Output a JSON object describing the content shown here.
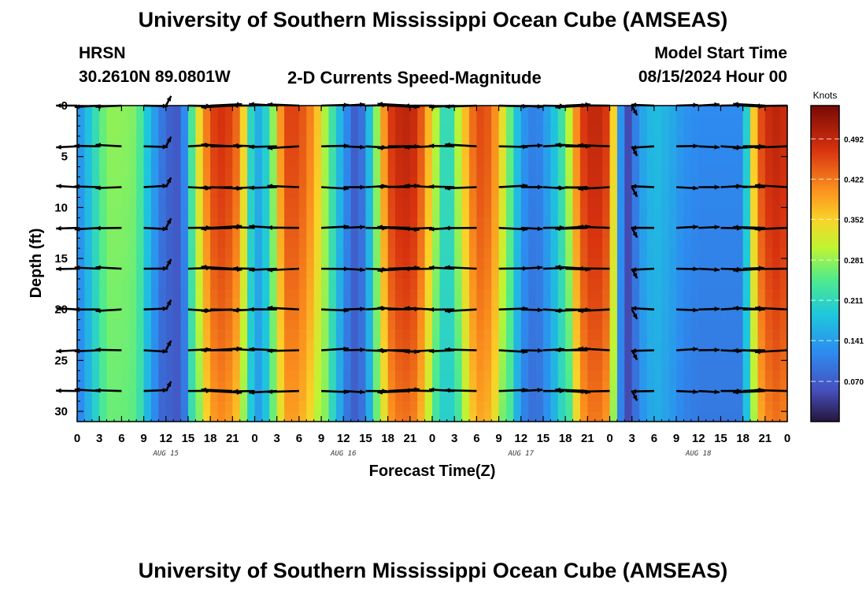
{
  "header": {
    "title": "University of Southern Mississippi Ocean Cube (AMSEAS)",
    "station": "HRSN",
    "location": "30.2610N  89.0801W",
    "subtitle": "2-D Currents Speed-Magnitude",
    "model_start_label": "Model Start Time",
    "model_start_value": "08/15/2024 Hour 00"
  },
  "footer": {
    "title": "University of Southern Mississippi Ocean Cube (AMSEAS)"
  },
  "chart_data": {
    "type": "heatmap",
    "title": "2-D Currents Speed-Magnitude",
    "xlabel": "Forecast Time(Z)",
    "ylabel": "Depth (ft)",
    "x_range_hours": [
      0,
      96
    ],
    "y_range_ft": [
      0,
      31
    ],
    "x_tick_labels": [
      "0",
      "3",
      "6",
      "9",
      "12",
      "15",
      "18",
      "21",
      "0",
      "3",
      "6",
      "9",
      "12",
      "15",
      "18",
      "21",
      "0",
      "3",
      "6",
      "9",
      "12",
      "15",
      "18",
      "21",
      "0",
      "3",
      "6",
      "9",
      "12",
      "15",
      "18",
      "21",
      "0"
    ],
    "y_ticks": [
      0,
      5,
      10,
      15,
      20,
      25,
      30
    ],
    "date_labels": [
      {
        "label": "AUG 15",
        "hour": 12
      },
      {
        "label": "AUG 16",
        "hour": 36
      },
      {
        "label": "AUG 17",
        "hour": 60
      },
      {
        "label": "AUG 18",
        "hour": 84
      }
    ],
    "colorbar": {
      "unit": "Knots",
      "min": 0.0,
      "max": 0.55,
      "ticks": [
        "0.492",
        "0.422",
        "0.352",
        "0.281",
        "0.211",
        "0.141",
        "0.070"
      ],
      "tick_values": [
        0.492,
        0.422,
        0.352,
        0.281,
        0.211,
        0.141,
        0.07
      ]
    },
    "speed_profile_knots": {
      "hours": [
        0,
        2,
        4,
        6,
        8,
        10,
        12,
        14,
        16,
        18,
        20,
        22,
        24,
        26,
        28,
        30,
        32,
        34,
        36,
        38,
        40,
        42,
        44,
        46,
        48,
        50,
        52,
        54,
        56,
        58,
        60,
        62,
        64,
        66,
        68,
        70,
        72,
        74,
        76,
        78,
        80,
        82,
        84,
        86,
        88,
        90,
        92,
        94,
        96
      ],
      "values": [
        0.12,
        0.2,
        0.28,
        0.28,
        0.27,
        0.16,
        0.08,
        0.06,
        0.3,
        0.46,
        0.48,
        0.42,
        0.14,
        0.22,
        0.46,
        0.46,
        0.4,
        0.26,
        0.14,
        0.05,
        0.22,
        0.46,
        0.5,
        0.48,
        0.34,
        0.18,
        0.34,
        0.46,
        0.44,
        0.3,
        0.14,
        0.1,
        0.16,
        0.25,
        0.46,
        0.5,
        0.46,
        0.02,
        0.14,
        0.18,
        0.16,
        0.13,
        0.12,
        0.12,
        0.12,
        0.12,
        0.44,
        0.5,
        0.48
      ]
    },
    "vector_depths_ft": [
      0,
      4,
      8,
      12,
      16,
      20,
      24,
      28
    ]
  }
}
